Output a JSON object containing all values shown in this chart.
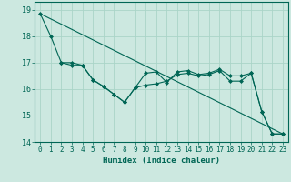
{
  "title": "",
  "xlabel": "Humidex (Indice chaleur)",
  "ylabel": "",
  "background_color": "#cce8e0",
  "grid_color": "#aad4c8",
  "line_color": "#006655",
  "xlim": [
    -0.5,
    23.5
  ],
  "ylim": [
    14.0,
    19.3
  ],
  "yticks": [
    14,
    15,
    16,
    17,
    18,
    19
  ],
  "xticks": [
    0,
    1,
    2,
    3,
    4,
    5,
    6,
    7,
    8,
    9,
    10,
    11,
    12,
    13,
    14,
    15,
    16,
    17,
    18,
    19,
    20,
    21,
    22,
    23
  ],
  "series": [
    {
      "x": [
        0,
        1,
        2,
        3,
        4,
        5,
        6,
        7,
        8,
        9,
        10,
        11,
        12,
        13,
        14,
        15,
        16,
        17,
        18,
        19,
        20,
        21,
        22,
        23
      ],
      "y": [
        18.85,
        18.0,
        17.0,
        17.0,
        16.9,
        16.35,
        16.1,
        15.8,
        15.5,
        16.05,
        16.15,
        16.2,
        16.3,
        16.55,
        16.6,
        16.5,
        16.55,
        16.7,
        16.3,
        16.3,
        16.6,
        15.15,
        14.3,
        14.3
      ]
    },
    {
      "x": [
        2,
        3,
        4,
        5,
        6,
        7,
        8,
        9,
        10,
        11,
        12,
        13,
        14,
        15,
        16,
        17,
        18,
        19,
        20,
        21,
        22,
        23
      ],
      "y": [
        17.0,
        16.9,
        16.9,
        16.35,
        16.1,
        15.8,
        15.5,
        16.05,
        16.6,
        16.65,
        16.25,
        16.65,
        16.7,
        16.55,
        16.6,
        16.75,
        16.5,
        16.5,
        16.6,
        15.15,
        14.3,
        14.3
      ]
    },
    {
      "x": [
        0,
        23
      ],
      "y": [
        18.85,
        14.3
      ]
    }
  ]
}
